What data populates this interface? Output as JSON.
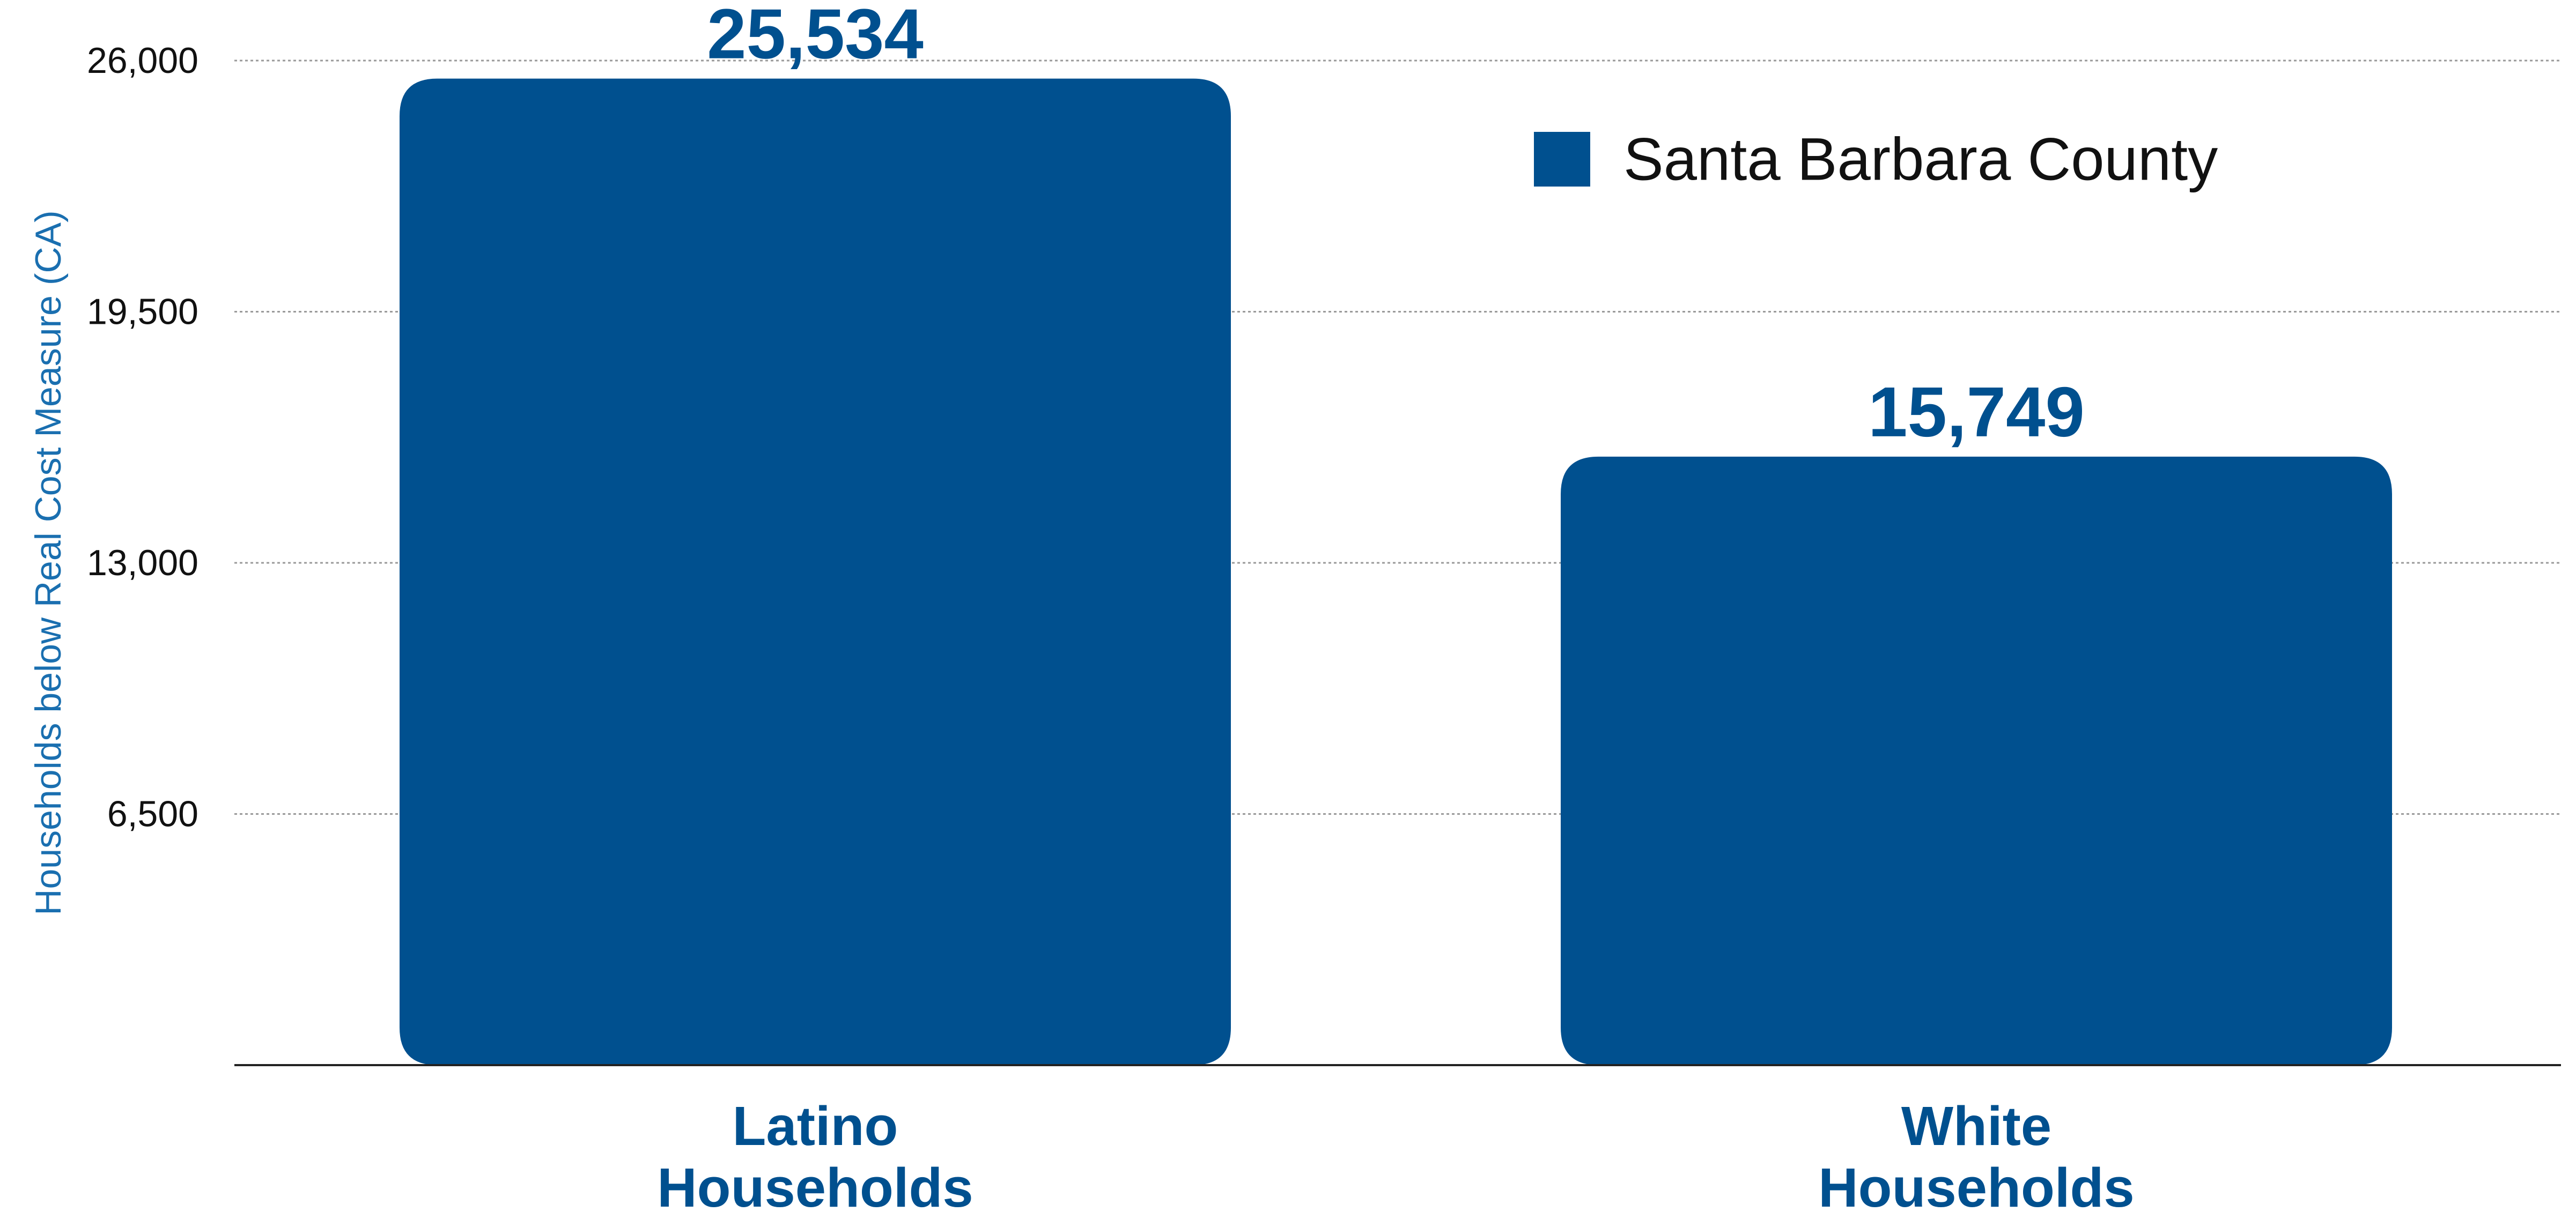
{
  "chart_data": {
    "type": "bar",
    "categories": [
      [
        "Latino",
        "Households"
      ],
      [
        "White",
        "Households"
      ]
    ],
    "series": [
      {
        "name": "Santa Barbara County",
        "values": [
          25534,
          15749
        ],
        "data_labels": [
          "25,534",
          "15,749"
        ],
        "color": "#00508f"
      }
    ],
    "ylabel": "Households below Real Cost Measure (CA)",
    "xlabel": "",
    "ylim": [
      0,
      26000
    ],
    "y_ticks": [
      6500,
      13000,
      19500,
      26000
    ],
    "y_tick_labels": [
      "6,500",
      "13,000",
      "19,500",
      "26,000"
    ],
    "grid": true,
    "legend": "top-right",
    "colors": {
      "bar": "#00508f",
      "label": "#00508f",
      "ylabel": "#1a6fb0",
      "grid": "#9a9a9a",
      "axis": "#222222"
    }
  }
}
